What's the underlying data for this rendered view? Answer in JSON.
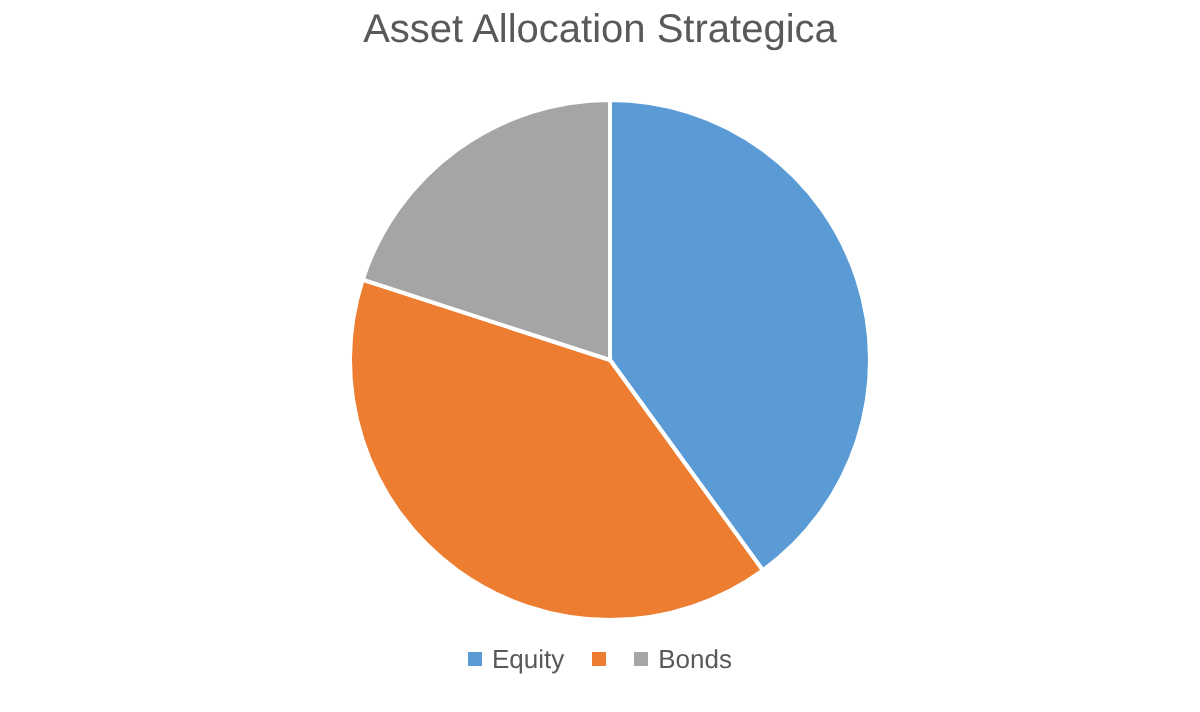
{
  "chart_data": {
    "type": "pie",
    "title": "Asset Allocation Strategica",
    "categories": [
      "Equity",
      null,
      "Bonds"
    ],
    "values": [
      40,
      40,
      20
    ],
    "colors": [
      "#5b9bd5",
      "#ed7d31",
      "#a5a5a5"
    ],
    "legend": "bottom"
  }
}
